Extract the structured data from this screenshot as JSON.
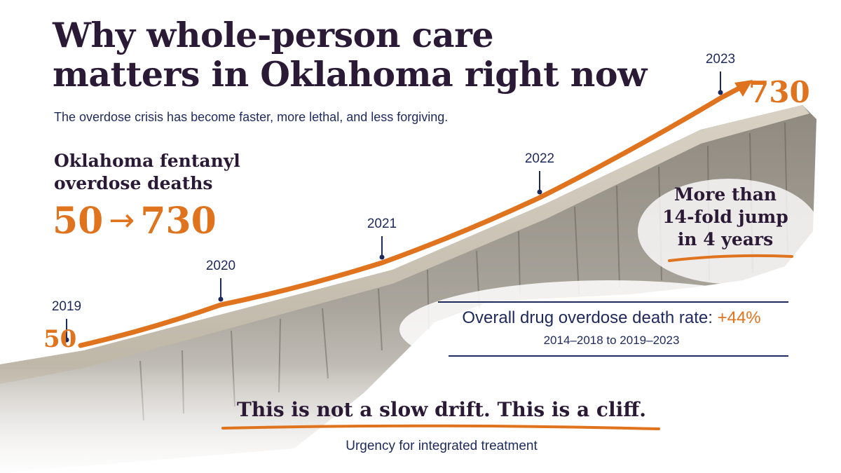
{
  "title_lines": [
    "Why whole-person care",
    "matters in Oklahoma right now"
  ],
  "subtitle": "The overdose crisis has become faster, more lethal, and less forgiving.",
  "stat": {
    "label_lines": [
      "Oklahoma fentanyl",
      "overdose deaths"
    ],
    "from": "50",
    "arrow": "→",
    "to": "730"
  },
  "chart_data": {
    "type": "line",
    "title": "Oklahoma fentanyl overdose deaths",
    "x": [
      2019,
      2020,
      2021,
      2022,
      2023
    ],
    "x_labels": [
      "2019",
      "2020",
      "2021",
      "2022",
      "2023"
    ],
    "series": [
      {
        "name": "",
        "values": [
          50,
          null,
          null,
          null,
          730
        ]
      }
    ],
    "point_labels": [
      "50",
      "",
      "",
      "",
      "730"
    ],
    "xlabel": "",
    "ylabel": "",
    "grid": false,
    "legend": "none"
  },
  "jump_lines": [
    "More than",
    "14-fold jump",
    "in 4 years"
  ],
  "rate": {
    "text": "Overall drug overdose death rate: ",
    "value": "+44%",
    "period": "2014–2018 to 2019–2023"
  },
  "tagline": "This is not a slow drift. This is a cliff.",
  "tagline_sub": "Urgency for integrated treatment",
  "colors": {
    "accent": "#e0731e",
    "navy": "#1f2a5c",
    "title": "#2b1a36",
    "rock": "#9a948a",
    "rock_dark": "#6f6a62"
  }
}
